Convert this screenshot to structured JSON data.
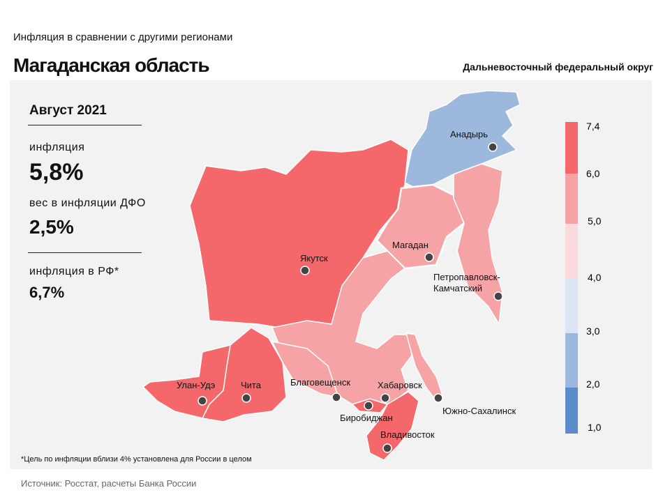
{
  "header": {
    "subtitle": "Инфляция в сравнении с другими регионами",
    "title": "Магаданская область",
    "district": "Дальневосточный федеральный округ"
  },
  "stats": {
    "period": "Август 2021",
    "inflation_label": "инфляция",
    "inflation_value": "5,8%",
    "weight_label": "вес в инфляции ДФО",
    "weight_value": "2,5%",
    "rf_label": "инфляция в РФ*",
    "rf_value": "6,7%"
  },
  "footnote": "*Цель по инфляции вблизи 4% установлена для России в целом",
  "source": "Источник: Росстат, расчеты Банка России",
  "colors": {
    "c1": "#5b8bc8",
    "c2": "#9cb8dd",
    "c3": "#dbe5f4",
    "c4": "#fadadd",
    "c5": "#f6a3a5",
    "c6": "#f4676a"
  },
  "legend": [
    "7,4",
    "6,0",
    "5,0",
    "4,0",
    "3,0",
    "2,0",
    "1,0"
  ],
  "cities": [
    "Анадырь",
    "Магадан",
    "Якутск",
    "Петропавловск-",
    "Камчатский",
    "Улан-Удэ",
    "Чита",
    "Благовещенск",
    "Хабаровск",
    "Биробиджан",
    "Владивосток",
    "Южно-Сахалинск"
  ]
}
